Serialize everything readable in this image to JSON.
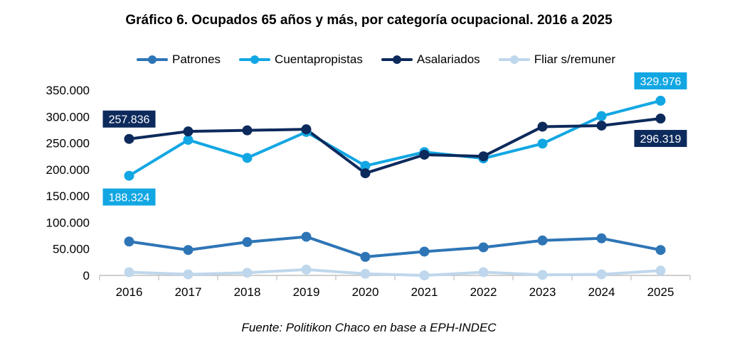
{
  "chart_data": {
    "type": "line",
    "title": "Gráfico 6. Ocupados 65 años y más, por categoría ocupacional. 2016 a 2025",
    "source": "Fuente: Politikon Chaco en base a EPH-INDEC",
    "categories": [
      "2016",
      "2017",
      "2018",
      "2019",
      "2020",
      "2021",
      "2022",
      "2023",
      "2024",
      "2025"
    ],
    "ylim": [
      0,
      350000
    ],
    "y_ticks": [
      0,
      50000,
      100000,
      150000,
      200000,
      250000,
      300000,
      350000
    ],
    "y_tick_labels": [
      "0",
      "50.000",
      "100.000",
      "150.000",
      "200.000",
      "250.000",
      "300.000",
      "350.000"
    ],
    "grid": false,
    "legend_position": "top",
    "series": [
      {
        "name": "Patrones",
        "color": "#2e75b6",
        "values": [
          64000,
          48000,
          63000,
          73000,
          35000,
          45000,
          53000,
          66000,
          70000,
          48000
        ]
      },
      {
        "name": "Cuentapropistas",
        "color": "#12a7e3",
        "values": [
          188324,
          256000,
          222000,
          271000,
          207000,
          233000,
          221000,
          249000,
          301000,
          329976
        ]
      },
      {
        "name": "Asalariados",
        "color": "#0d2a5c",
        "values": [
          257836,
          272000,
          274000,
          276000,
          193000,
          228000,
          225000,
          281000,
          283000,
          296319
        ]
      },
      {
        "name": "Fliar s/remuner",
        "color": "#bfd7ec",
        "values": [
          6000,
          2000,
          5000,
          11000,
          3000,
          0,
          6000,
          1000,
          2000,
          9000
        ]
      }
    ],
    "annotations": [
      {
        "series": 2,
        "index": 0,
        "label": "257.836",
        "bg": "#0d2a5c"
      },
      {
        "series": 1,
        "index": 0,
        "label": "188.324",
        "bg": "#12a7e3"
      },
      {
        "series": 1,
        "index": 9,
        "label": "329.976",
        "bg": "#12a7e3"
      },
      {
        "series": 2,
        "index": 9,
        "label": "296.319",
        "bg": "#0d2a5c"
      }
    ]
  }
}
